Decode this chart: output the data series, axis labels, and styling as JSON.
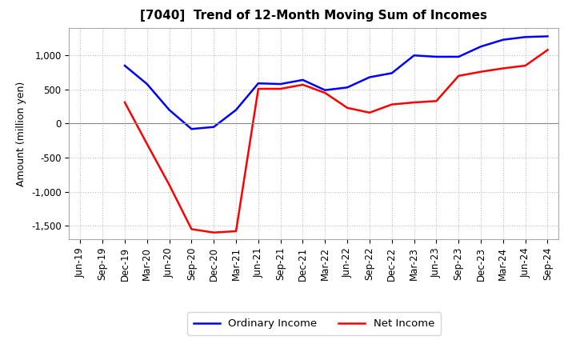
{
  "title": "[7040]  Trend of 12-Month Moving Sum of Incomes",
  "ylabel": "Amount (million yen)",
  "x_labels": [
    "Jun-19",
    "Sep-19",
    "Dec-19",
    "Mar-20",
    "Jun-20",
    "Sep-20",
    "Dec-20",
    "Mar-21",
    "Jun-21",
    "Sep-21",
    "Dec-21",
    "Mar-22",
    "Jun-22",
    "Sep-22",
    "Dec-22",
    "Mar-23",
    "Jun-23",
    "Sep-23",
    "Dec-23",
    "Mar-24",
    "Jun-24",
    "Sep-24"
  ],
  "ordinary_income": [
    null,
    null,
    850,
    580,
    200,
    -80,
    -50,
    200,
    590,
    580,
    640,
    490,
    530,
    680,
    740,
    1000,
    980,
    980,
    1130,
    1230,
    1270,
    1280
  ],
  "net_income": [
    null,
    null,
    310,
    -300,
    -900,
    -1550,
    -1600,
    -1580,
    510,
    510,
    570,
    450,
    230,
    160,
    280,
    310,
    330,
    700,
    760,
    810,
    850,
    1080
  ],
  "ordinary_color": "#0000ff",
  "net_color": "#ff0000",
  "ylim": [
    -1700,
    1400
  ],
  "yticks": [
    -1500,
    -1000,
    -500,
    0,
    500,
    1000
  ],
  "background_color": "#ffffff",
  "grid_color": "#bbbbbb",
  "title_fontsize": 11,
  "axis_fontsize": 9,
  "tick_fontsize": 8.5
}
